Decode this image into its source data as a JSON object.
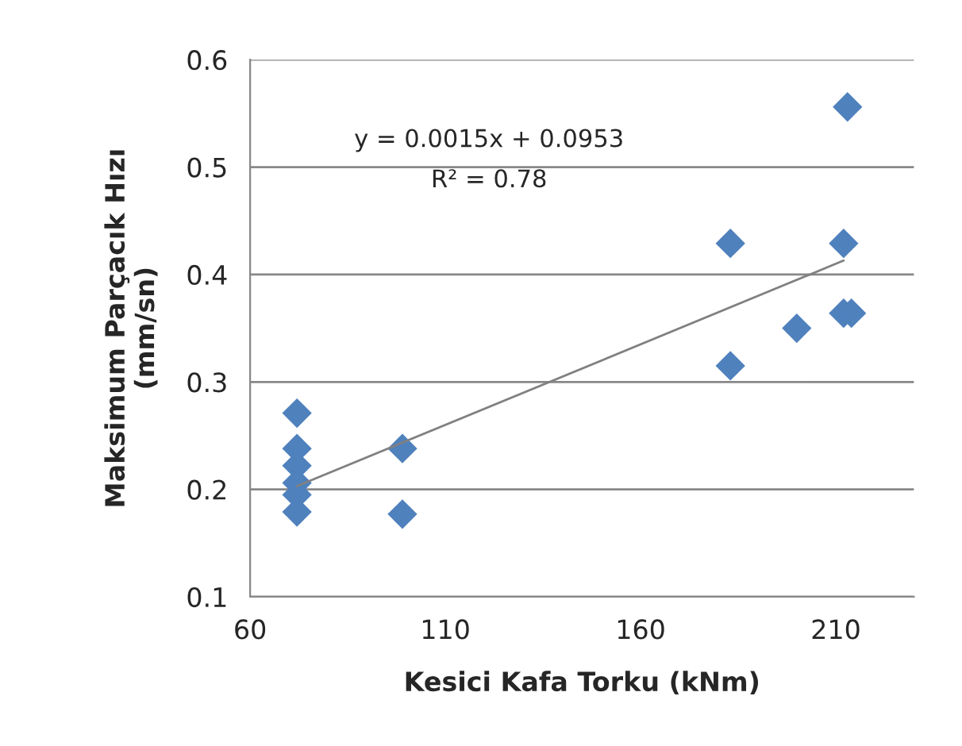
{
  "chart_data": {
    "type": "scatter",
    "xlabel": "Kesici Kafa Torku (kNm)",
    "ylabel": "Maksimum Parçacık Hızı\n(mm/sn)",
    "xlim": [
      60,
      230
    ],
    "xticks": [
      60,
      110,
      160,
      210
    ],
    "ylim": [
      0.1,
      0.6
    ],
    "yticks": [
      0.1,
      0.2,
      0.3,
      0.4,
      0.5,
      0.6
    ],
    "grid": "y",
    "marker": "diamond",
    "series": [
      {
        "color": "#4f81bd",
        "x": [
          72,
          72,
          72,
          72,
          72,
          72,
          99,
          99,
          183,
          183,
          200,
          212,
          212,
          214,
          213
        ],
        "values": [
          0.271,
          0.238,
          0.222,
          0.206,
          0.195,
          0.179,
          0.238,
          0.177,
          0.429,
          0.315,
          0.35,
          0.429,
          0.364,
          0.364,
          0.556
        ]
      },
      {
        "type": "line",
        "color": "#808080",
        "marker": "none",
        "line_style": "solid",
        "x": [
          72,
          212
        ],
        "values": [
          0.203,
          0.413
        ]
      }
    ],
    "annotations": [
      "y = 0.0015x + 0.0953",
      "R² = 0.78"
    ]
  }
}
